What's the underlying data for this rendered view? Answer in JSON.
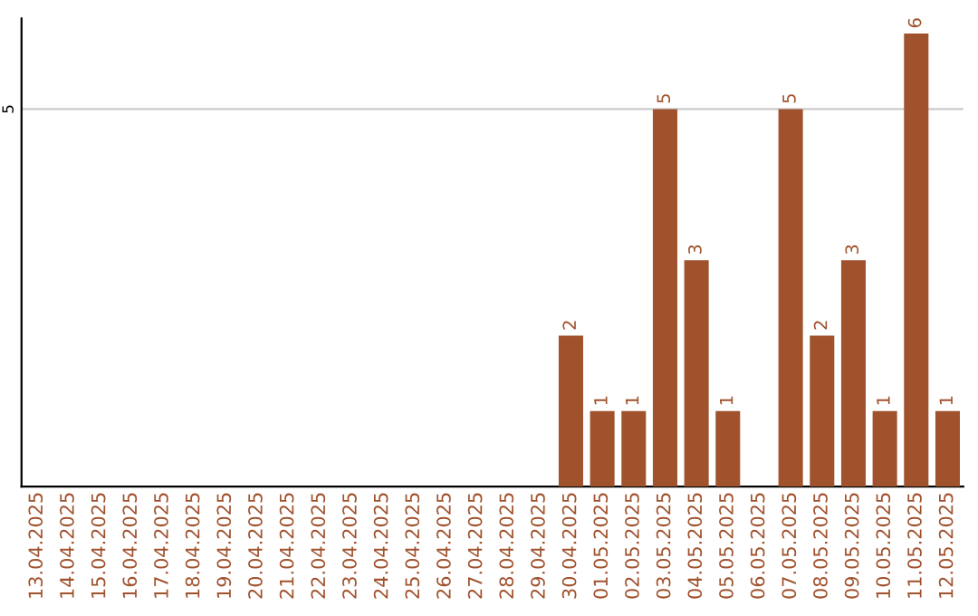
{
  "chart_data": {
    "type": "bar",
    "categories": [
      "13.04.2025",
      "14.04.2025",
      "15.04.2025",
      "16.04.2025",
      "17.04.2025",
      "18.04.2025",
      "19.04.2025",
      "20.04.2025",
      "21.04.2025",
      "22.04.2025",
      "23.04.2025",
      "24.04.2025",
      "25.04.2025",
      "26.04.2025",
      "27.04.2025",
      "28.04.2025",
      "29.04.2025",
      "30.04.2025",
      "01.05.2025",
      "02.05.2025",
      "03.05.2025",
      "04.05.2025",
      "05.05.2025",
      "06.05.2025",
      "07.05.2025",
      "08.05.2025",
      "09.05.2025",
      "10.05.2025",
      "11.05.2025",
      "12.05.2025"
    ],
    "values": [
      null,
      null,
      null,
      null,
      null,
      null,
      null,
      null,
      null,
      null,
      null,
      null,
      null,
      null,
      null,
      null,
      null,
      2,
      1,
      1,
      5,
      3,
      1,
      null,
      5,
      2,
      3,
      1,
      6,
      1
    ],
    "value_labels": [
      null,
      null,
      null,
      null,
      null,
      null,
      null,
      null,
      null,
      null,
      null,
      null,
      null,
      null,
      null,
      null,
      null,
      "2",
      "1",
      "1",
      "5",
      "3",
      "1",
      null,
      "5",
      "2",
      "3",
      "1",
      "6",
      "1"
    ],
    "color": "#a0522d",
    "ylim": [
      0,
      6.2
    ],
    "yticks": [
      {
        "value": 0,
        "label": null
      },
      5
    ],
    "grid": "y",
    "legend": false
  }
}
